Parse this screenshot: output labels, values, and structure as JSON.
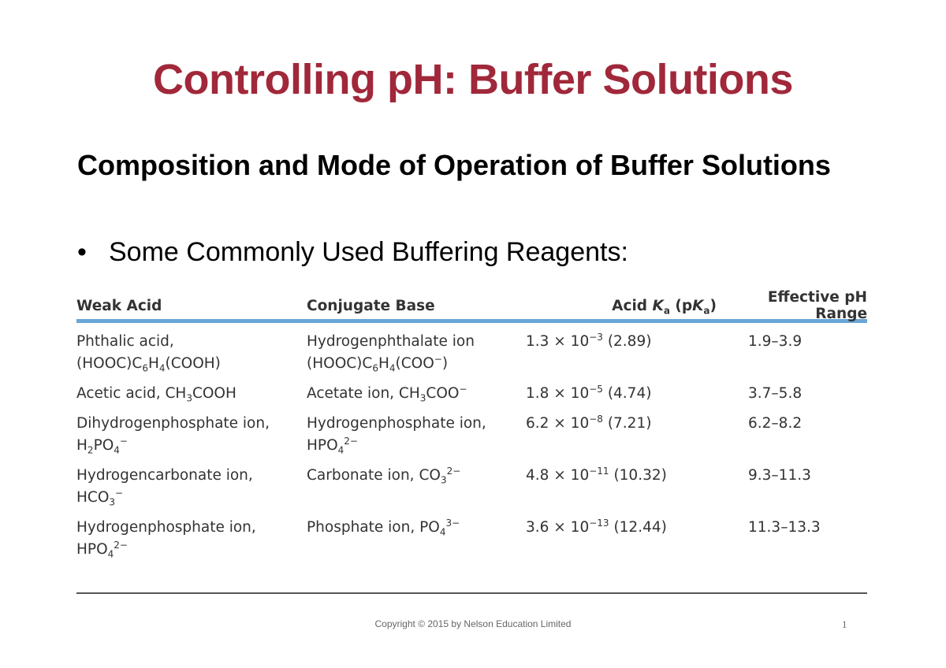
{
  "slide": {
    "title": "Controlling pH: Buffer Solutions",
    "subheading": "Composition and Mode of Operation of Buffer Solutions",
    "bullet_symbol": "•",
    "bullet_text": "Some Commonly Used Buffering Reagents:",
    "title_color": "#a0283a",
    "header_rule_color": "#6aa6d6"
  },
  "table": {
    "headers": {
      "weak_acid": "Weak Acid",
      "conjugate_base": "Conjugate Base",
      "acid_ka_prefix": "Acid ",
      "acid_ka_K": "K",
      "acid_ka_sub": "a",
      "acid_ka_mid": " (p",
      "acid_ka_K2": "K",
      "acid_ka_sub2": "a",
      "acid_ka_end": ")",
      "effective_ph_range": "Effective pH Range"
    },
    "rows": [
      {
        "weak_acid_line1": "Phthalic acid,",
        "weak_acid_line2_html": "(HOOC)C<sub>6</sub>H<sub>4</sub>(COOH)",
        "conjugate_base_line1": "Hydrogenphthalate ion",
        "conjugate_base_line2_html": "(HOOC)C<sub>6</sub>H<sub>4</sub>(COO<sup>−</sup>)",
        "ka_mantissa": "1.3",
        "ka_exponent": "−3",
        "pka": "(2.89)",
        "ph_range": "1.9–3.9"
      },
      {
        "weak_acid_line1_html": "Acetic acid, CH<sub>3</sub>COOH",
        "conjugate_base_line1_html": "Acetate ion, CH<sub>3</sub>COO<sup>−</sup>",
        "ka_mantissa": "1.8",
        "ka_exponent": "−5",
        "pka": "(4.74)",
        "ph_range": "3.7–5.8"
      },
      {
        "weak_acid_line1": "Dihydrogenphosphate ion,",
        "weak_acid_line2_html": "H<sub>2</sub>PO<sub>4</sub><sup>−</sup>",
        "conjugate_base_line1": "Hydrogenphosphate ion,",
        "conjugate_base_line2_html": "HPO<sub>4</sub><sup>2−</sup>",
        "ka_mantissa": "6.2",
        "ka_exponent": "−8",
        "pka": "(7.21)",
        "ph_range": "6.2–8.2"
      },
      {
        "weak_acid_line1": "Hydrogencarbonate ion,",
        "weak_acid_line2_html": "HCO<sub>3</sub><sup>−</sup>",
        "conjugate_base_line1_html": "Carbonate ion, CO<sub>3</sub><sup>2−</sup>",
        "ka_mantissa": "4.8",
        "ka_exponent": "−11",
        "pka": "(10.32)",
        "ph_range": "9.3–11.3"
      },
      {
        "weak_acid_line1": "Hydrogenphosphate ion,",
        "weak_acid_line2_html": "HPO<sub>4</sub><sup>2−</sup>",
        "conjugate_base_line1_html": "Phosphate ion, PO<sub>4</sub><sup>3−</sup>",
        "ka_mantissa": "3.6",
        "ka_exponent": "−13",
        "pka": "(12.44)",
        "ph_range": "11.3–13.3"
      }
    ]
  },
  "footer": {
    "copyright": "Copyright © 2015 by Nelson Education Limited",
    "page_number": "1"
  }
}
